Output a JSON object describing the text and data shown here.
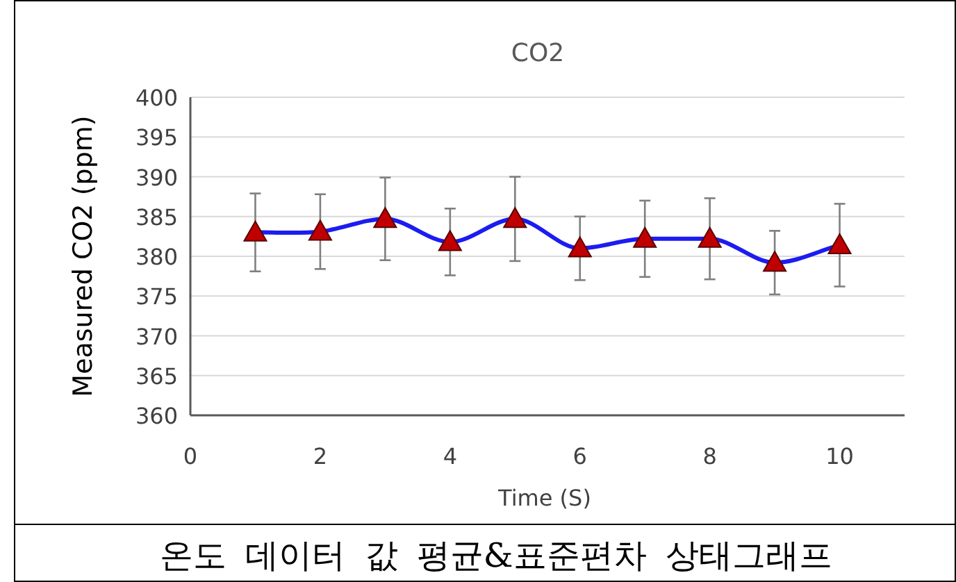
{
  "chart_data": {
    "type": "line",
    "title": "CO2",
    "xlabel": "Time (S)",
    "ylabel": "Measured CO2 (ppm)",
    "x": [
      1,
      2,
      3,
      4,
      5,
      6,
      7,
      8,
      9,
      10
    ],
    "values": [
      383.0,
      383.1,
      384.7,
      381.8,
      384.7,
      381.0,
      382.2,
      382.2,
      379.2,
      381.4
    ],
    "errors": [
      4.9,
      4.7,
      5.2,
      4.2,
      5.3,
      4.0,
      4.8,
      5.1,
      4.0,
      5.2
    ],
    "color": "#1c1cf0",
    "colors": [
      "#c00000",
      "#c00000",
      "#c00000",
      "#c00000",
      "#c00000",
      "#c00000",
      "#c00000",
      "#c00000",
      "#c00000",
      "#c00000"
    ],
    "marker": "triangle",
    "line_style": "solid",
    "grid": "y",
    "xlim": [
      0,
      11
    ],
    "xticks": [
      0,
      2,
      4,
      6,
      8,
      10
    ],
    "ylim": [
      360,
      400
    ],
    "yticks": [
      360,
      365,
      370,
      375,
      380,
      385,
      390,
      395,
      400
    ],
    "annotations": [
      "온도 데이터 값 평균&표준편차 상태그래프"
    ]
  }
}
